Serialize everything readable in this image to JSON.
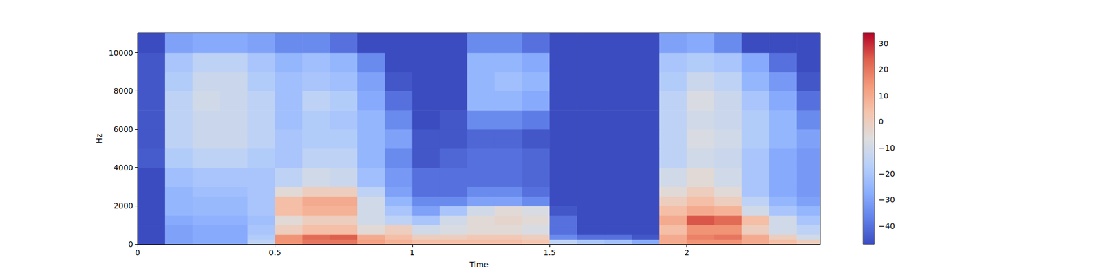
{
  "chart_data": {
    "type": "heatmap",
    "xlabel": "Time",
    "ylabel": "Hz",
    "xlim": [
      0,
      2.486
    ],
    "xticks": [
      0,
      0.5,
      1,
      1.5,
      2
    ],
    "ylim": [
      0,
      11025
    ],
    "yticks": [
      0,
      2000,
      4000,
      6000,
      8000,
      10000
    ],
    "time_edges": [
      0,
      0.1,
      0.2,
      0.3,
      0.4,
      0.5,
      0.6,
      0.7,
      0.8,
      0.9,
      1.0,
      1.1,
      1.2,
      1.3,
      1.4,
      1.5,
      1.6,
      1.7,
      1.8,
      1.9,
      2.0,
      2.1,
      2.2,
      2.3,
      2.4,
      2.486
    ],
    "freq_edges": [
      0,
      250,
      500,
      1000,
      1500,
      2000,
      2500,
      3000,
      4000,
      5000,
      6000,
      7000,
      8000,
      9000,
      10000,
      11025
    ],
    "cells": [
      [
        -47,
        -30,
        -28,
        -28,
        -15,
        15,
        20,
        20,
        12,
        8,
        5,
        5,
        5,
        5,
        3,
        -15,
        -20,
        -22,
        -28,
        10,
        15,
        15,
        10,
        5,
        0
      ],
      [
        -47,
        -30,
        -28,
        -28,
        -18,
        15,
        22,
        24,
        10,
        5,
        0,
        0,
        2,
        2,
        0,
        -35,
        -40,
        -40,
        -45,
        10,
        18,
        20,
        10,
        0,
        -10
      ],
      [
        -47,
        -30,
        -28,
        -28,
        -20,
        0,
        5,
        5,
        -5,
        0,
        -10,
        -8,
        -5,
        -5,
        -8,
        -40,
        -47,
        -47,
        -47,
        5,
        15,
        15,
        0,
        -10,
        -15
      ],
      [
        -47,
        -28,
        -26,
        -26,
        -22,
        -5,
        0,
        0,
        -10,
        -15,
        -20,
        -10,
        -5,
        -3,
        -5,
        -40,
        -47,
        -47,
        -47,
        10,
        25,
        22,
        5,
        -10,
        -20
      ],
      [
        -47,
        -25,
        -24,
        -24,
        -20,
        5,
        8,
        8,
        -10,
        -20,
        -30,
        -20,
        -10,
        -5,
        -8,
        -45,
        -47,
        -47,
        -47,
        5,
        10,
        8,
        -10,
        -20,
        -25
      ],
      [
        -47,
        -25,
        -24,
        -24,
        -20,
        5,
        10,
        10,
        -10,
        -25,
        -35,
        -35,
        -30,
        -30,
        -35,
        -47,
        -47,
        -47,
        -47,
        0,
        5,
        0,
        -15,
        -25,
        -30
      ],
      [
        -47,
        -25,
        -22,
        -22,
        -20,
        -5,
        0,
        0,
        -15,
        -30,
        -40,
        -40,
        -35,
        -35,
        -40,
        -47,
        -47,
        -47,
        -47,
        -5,
        0,
        -5,
        -20,
        -28,
        -32
      ],
      [
        -47,
        -22,
        -20,
        -20,
        -20,
        -15,
        -10,
        -12,
        -22,
        -32,
        -40,
        -40,
        -40,
        -40,
        -42,
        -47,
        -47,
        -47,
        -47,
        -10,
        -5,
        -10,
        -20,
        -28,
        -32
      ],
      [
        -44,
        -18,
        -15,
        -15,
        -18,
        -20,
        -15,
        -15,
        -25,
        -35,
        -45,
        -42,
        -40,
        -40,
        -42,
        -47,
        -47,
        -47,
        -47,
        -15,
        -10,
        -12,
        -20,
        -28,
        -32
      ],
      [
        -45,
        -15,
        -12,
        -12,
        -15,
        -20,
        -18,
        -18,
        -25,
        -30,
        -45,
        -45,
        -42,
        -42,
        -45,
        -47,
        -47,
        -47,
        -47,
        -15,
        -8,
        -10,
        -18,
        -25,
        -30
      ],
      [
        -45,
        -15,
        -12,
        -12,
        -15,
        -22,
        -18,
        -20,
        -25,
        -35,
        -47,
        -45,
        -35,
        -35,
        -38,
        -47,
        -47,
        -47,
        -47,
        -15,
        -10,
        -12,
        -18,
        -25,
        -35
      ],
      [
        -45,
        -15,
        -10,
        -12,
        -15,
        -22,
        -15,
        -18,
        -28,
        -40,
        -47,
        -47,
        -25,
        -25,
        -28,
        -47,
        -47,
        -47,
        -47,
        -15,
        -8,
        -12,
        -20,
        -28,
        -40
      ],
      [
        -45,
        -18,
        -12,
        -12,
        -18,
        -22,
        -20,
        -22,
        -30,
        -45,
        -47,
        -47,
        -25,
        -22,
        -25,
        -47,
        -47,
        -47,
        -47,
        -18,
        -12,
        -15,
        -25,
        -32,
        -45
      ],
      [
        -45,
        -20,
        -15,
        -15,
        -20,
        -25,
        -22,
        -25,
        -35,
        -47,
        -47,
        -47,
        -25,
        -25,
        -28,
        -47,
        -47,
        -47,
        -47,
        -20,
        -18,
        -20,
        -28,
        -40,
        -47
      ],
      [
        -47,
        -30,
        -28,
        -28,
        -30,
        -35,
        -35,
        -40,
        -47,
        -47,
        -47,
        -47,
        -35,
        -35,
        -40,
        -47,
        -47,
        -47,
        -47,
        -30,
        -28,
        -35,
        -47,
        -47,
        -47
      ]
    ],
    "colorbar": {
      "range": [
        -47,
        34
      ],
      "ticks": [
        {
          "value": -40,
          "label": "−40"
        },
        {
          "value": -30,
          "label": "−30"
        },
        {
          "value": -20,
          "label": "−20"
        },
        {
          "value": -10,
          "label": "−10"
        },
        0,
        10,
        20,
        30
      ]
    }
  }
}
